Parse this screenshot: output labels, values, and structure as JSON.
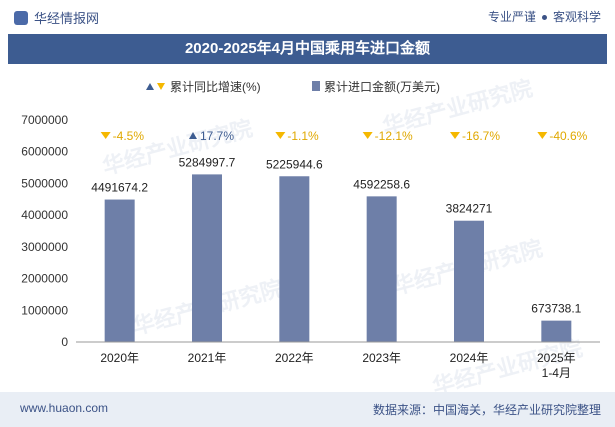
{
  "header": {
    "brand": "华经情报网",
    "tagline_left": "专业严谨",
    "tagline_right": "客观科学"
  },
  "chart_data": {
    "type": "bar",
    "title": "2020-2025年4月中国乘用车进口金额",
    "categories": [
      "2020年",
      "2021年",
      "2022年",
      "2023年",
      "2024年",
      "2025年\n1-4月"
    ],
    "series": [
      {
        "name": "累计进口金额(万美元)",
        "values": [
          4491674.2,
          5284997.7,
          5225944.6,
          4592258.6,
          3824271,
          673738.1
        ]
      },
      {
        "name": "累计同比增速(%)",
        "values": [
          -4.5,
          17.7,
          -1.1,
          -12.1,
          -16.7,
          -40.6
        ]
      }
    ],
    "value_labels": [
      "4491674.2",
      "5284997.7",
      "5225944.6",
      "4592258.6",
      "3824271",
      "673738.1"
    ],
    "growth_labels": [
      "-4.5%",
      "17.7%",
      "-1.1%",
      "-12.1%",
      "-16.7%",
      "-40.6%"
    ],
    "yticks": [
      "0",
      "1000000",
      "2000000",
      "3000000",
      "4000000",
      "5000000",
      "6000000",
      "7000000"
    ],
    "ylim": [
      0,
      7000000
    ],
    "colors": {
      "bar": "#6e7fa8",
      "up": "#3d5c91",
      "down": "#f5b800",
      "title_bg": "#3d5c91"
    }
  },
  "watermarks": [
    "华经产业研究院",
    "www.huaon.com"
  ],
  "footer": {
    "website": "www.huaon.com",
    "source": "数据来源：中国海关，华经产业研究院整理"
  }
}
